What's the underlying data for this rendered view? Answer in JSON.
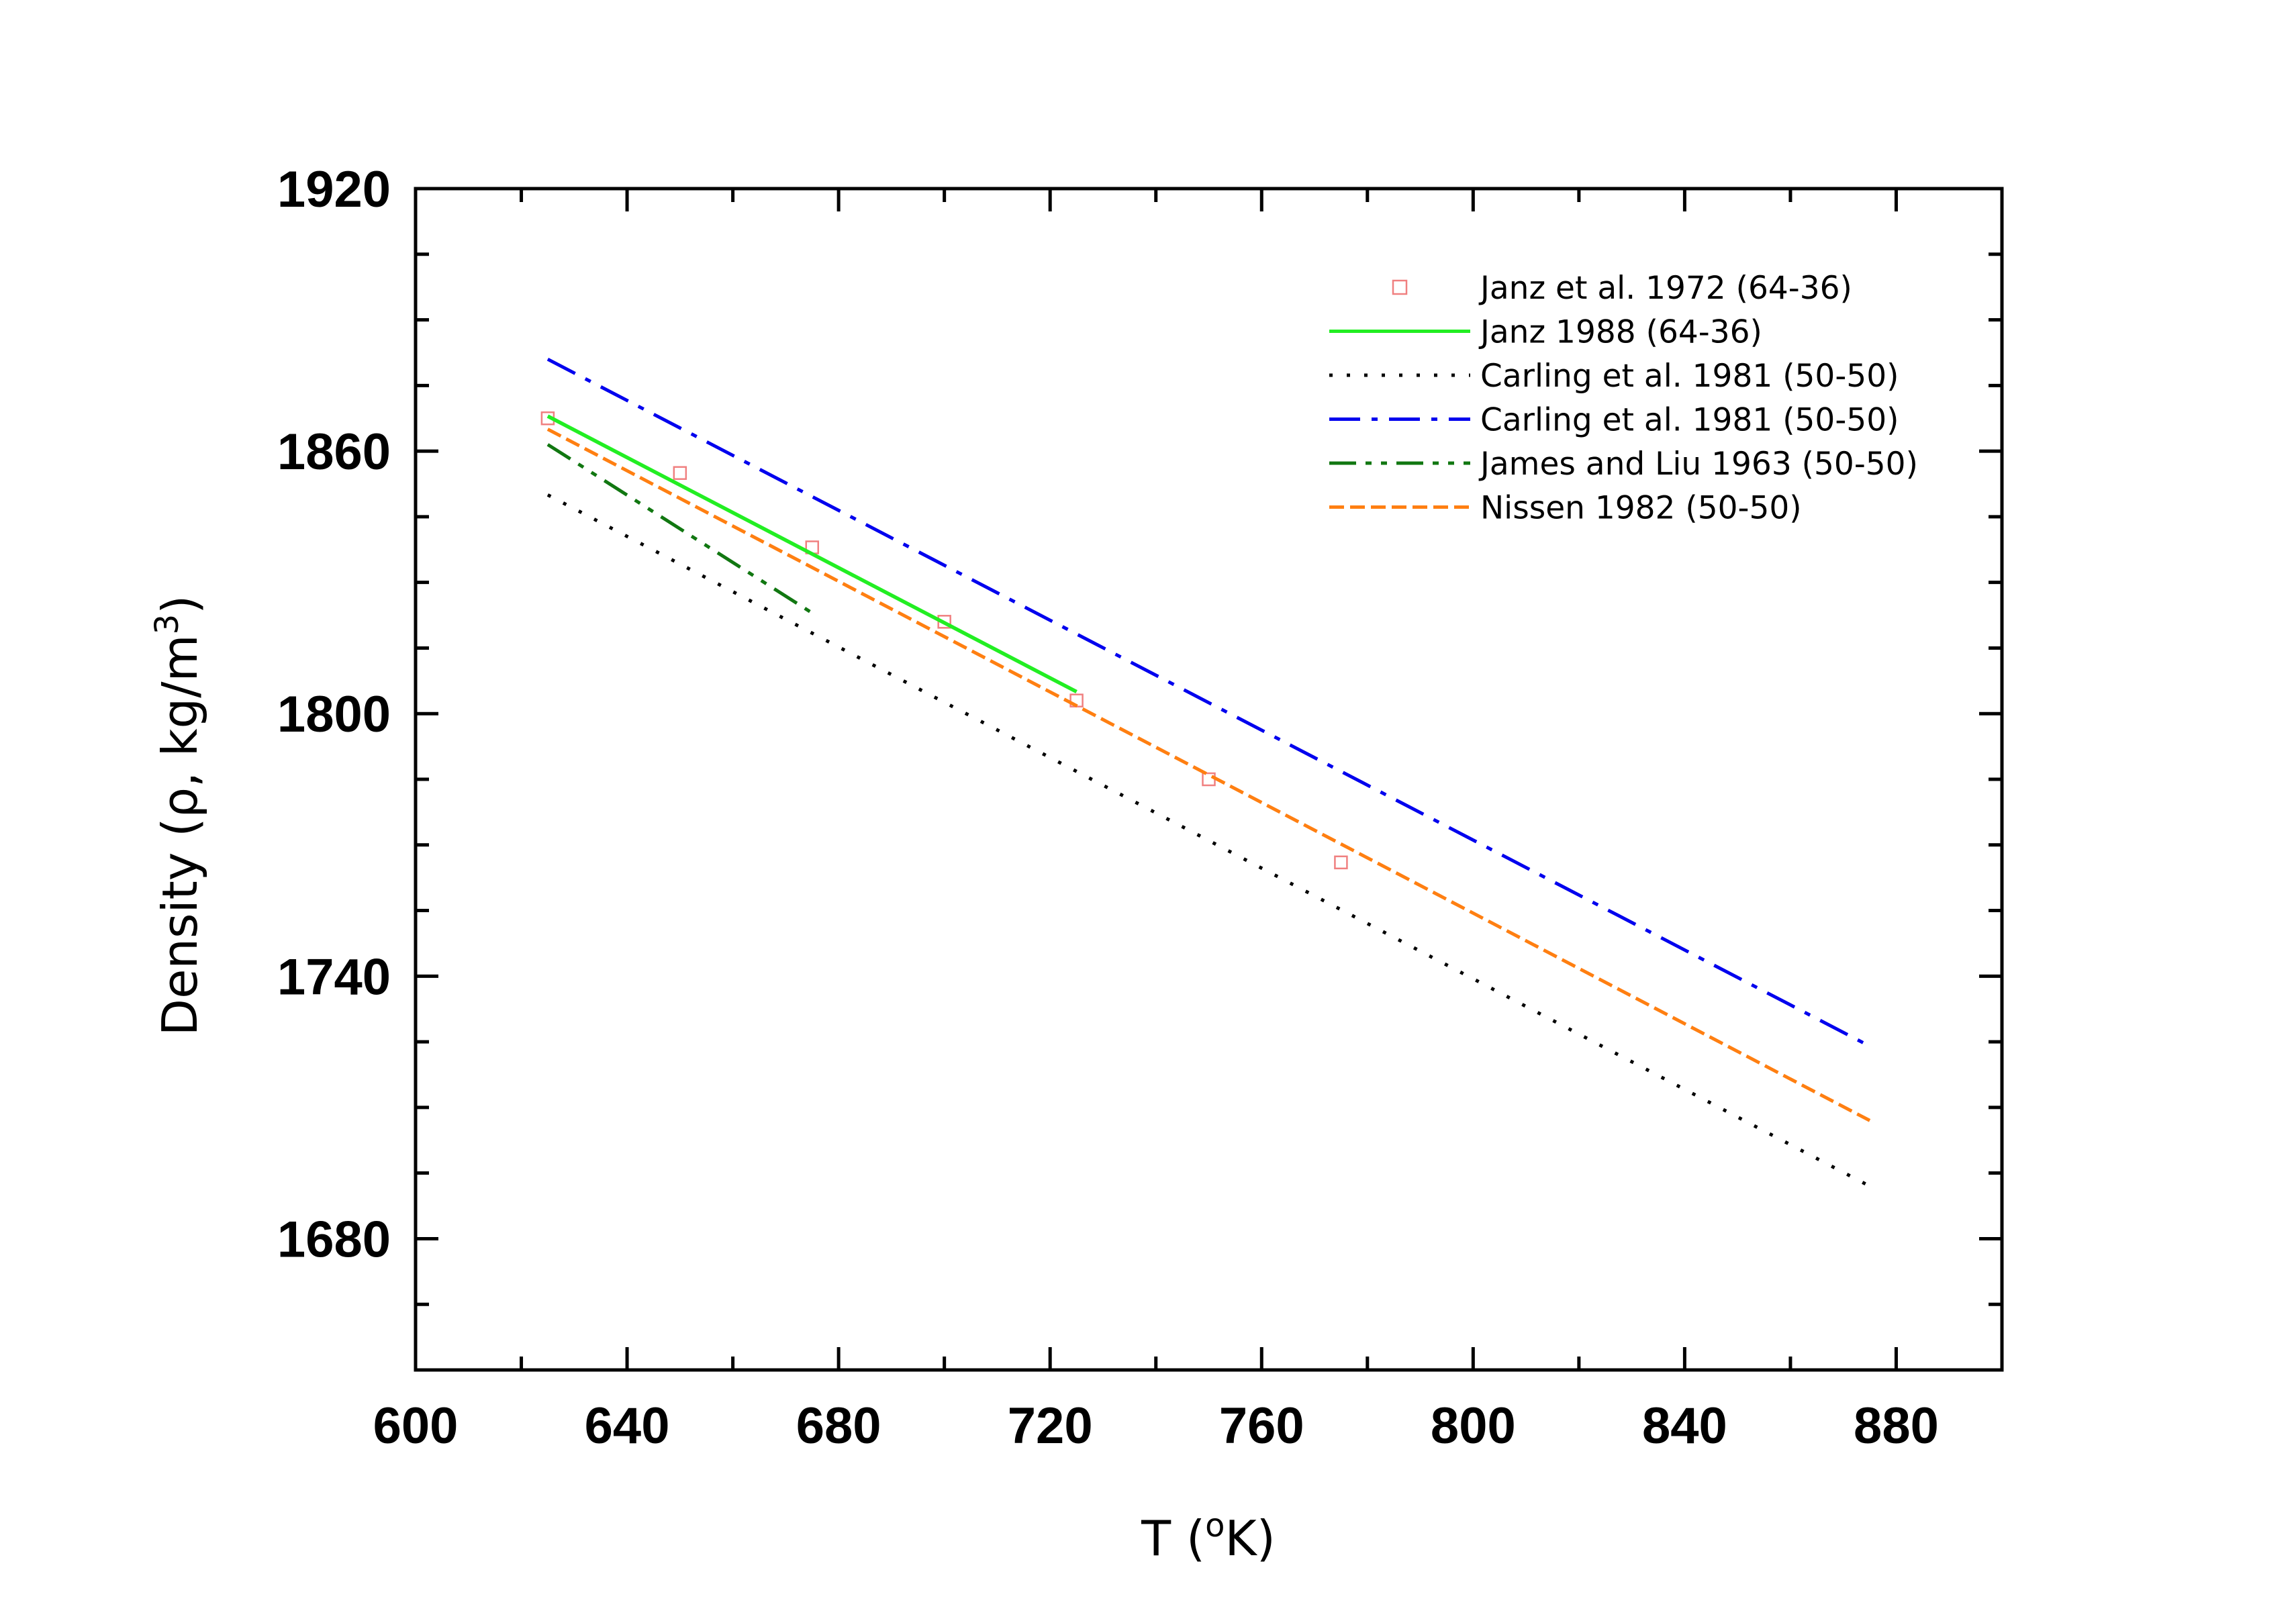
{
  "chart_data": {
    "type": "line",
    "title": "",
    "xlabel": {
      "main": "T (",
      "sup": "o",
      "tail": "K)"
    },
    "ylabel": {
      "main": "Density (ρ, kg/m",
      "sup": "3",
      "tail": ")"
    },
    "xlim": [
      600,
      900
    ],
    "ylim": [
      1650,
      1920
    ],
    "x_ticks": [
      600,
      640,
      680,
      720,
      760,
      800,
      840,
      880
    ],
    "y_ticks": [
      1680,
      1740,
      1800,
      1860,
      1920
    ],
    "grid": false,
    "legend_position": "top-right",
    "series": [
      {
        "name": "Janz et al. 1972 (64-36)",
        "style": "markers",
        "color": "#f08080",
        "points": [
          [
            625,
            1867.5
          ],
          [
            650,
            1855
          ],
          [
            675,
            1838
          ],
          [
            700,
            1821
          ],
          [
            725,
            1803
          ],
          [
            750,
            1785
          ],
          [
            775,
            1766
          ]
        ]
      },
      {
        "name": "Janz 1988 (64-36)",
        "style": "solid",
        "color": "#22ee22",
        "points": [
          [
            625,
            1868
          ],
          [
            725,
            1805
          ]
        ]
      },
      {
        "name": "Carling et al. 1981 (50-50)",
        "style": "dotted",
        "color": "#000000",
        "points": [
          [
            625,
            1850
          ],
          [
            875,
            1692
          ]
        ]
      },
      {
        "name": "Carling et al. 1981 (50-50)",
        "style": "dashdot",
        "color": "#0000ee",
        "points": [
          [
            625,
            1881
          ],
          [
            875,
            1724
          ]
        ]
      },
      {
        "name": "James and Liu 1963 (50-50)",
        "style": "dashdotdot",
        "color": "#117711",
        "points": [
          [
            625,
            1861.5
          ],
          [
            675,
            1823
          ]
        ]
      },
      {
        "name": "Nissen 1982 (50-50)",
        "style": "dashed",
        "color": "#ff7f11",
        "points": [
          [
            625,
            1865
          ],
          [
            875,
            1707
          ]
        ]
      }
    ]
  }
}
